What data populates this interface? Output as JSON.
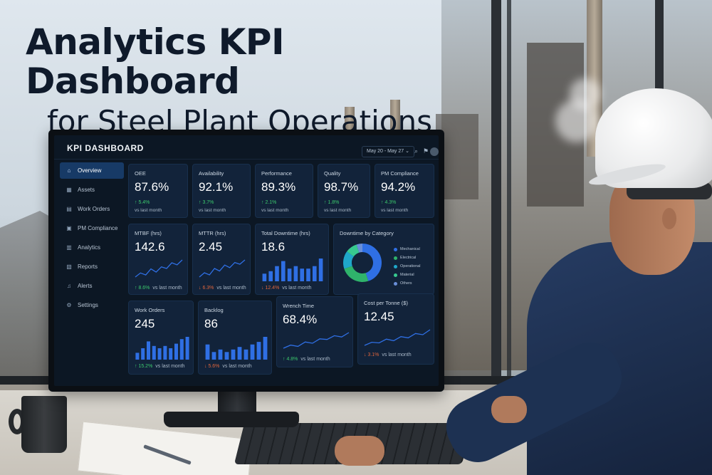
{
  "headline": {
    "title": "Analytics KPI Dashboard",
    "subtitle": "for Steel Plant Operations"
  },
  "app": {
    "title": "KPI DASHBOARD",
    "date_range": "May 20 - May 27",
    "icons": [
      "search-icon",
      "notification-icon",
      "user-avatar"
    ]
  },
  "sidebar": {
    "items": [
      {
        "label": "Overview",
        "icon": "home-icon",
        "active": true
      },
      {
        "label": "Assets",
        "icon": "assets-icon",
        "active": false
      },
      {
        "label": "Work Orders",
        "icon": "clipboard-icon",
        "active": false
      },
      {
        "label": "PM Compliance",
        "icon": "calendar-icon",
        "active": false
      },
      {
        "label": "Analytics",
        "icon": "analytics-icon",
        "active": false
      },
      {
        "label": "Reports",
        "icon": "report-icon",
        "active": false
      },
      {
        "label": "Alerts",
        "icon": "bell-icon",
        "active": false
      },
      {
        "label": "Settings",
        "icon": "gear-icon",
        "active": false
      }
    ]
  },
  "kpis_row1": [
    {
      "label": "OEE",
      "value": "87.6%",
      "delta": "↑ 5.4%",
      "sub": "vs last month",
      "trend": "up"
    },
    {
      "label": "Availability",
      "value": "92.1%",
      "delta": "↑ 3.7%",
      "sub": "vs last month",
      "trend": "up"
    },
    {
      "label": "Performance",
      "value": "89.3%",
      "delta": "↑ 2.1%",
      "sub": "vs last month",
      "trend": "up"
    },
    {
      "label": "Quality",
      "value": "98.7%",
      "delta": "↑ 1.8%",
      "sub": "vs last month",
      "trend": "up"
    },
    {
      "label": "PM Compliance",
      "value": "94.2%",
      "delta": "↑ 4.3%",
      "sub": "vs last month",
      "trend": "up"
    }
  ],
  "kpis_row2": [
    {
      "label": "MTBF (hrs)",
      "value": "142.6",
      "delta": "↑ 8.6%",
      "sub": "vs last month",
      "trend": "up"
    },
    {
      "label": "MTTR (hrs)",
      "value": "2.45",
      "delta": "↓ 6.3%",
      "sub": "vs last month",
      "trend": "down"
    },
    {
      "label": "Total Downtime (hrs)",
      "value": "18.6",
      "delta": "↓ 12.4%",
      "sub": "vs last month",
      "trend": "down"
    }
  ],
  "kpis_row3": [
    {
      "label": "Work Orders",
      "value": "245",
      "delta": "↑ 15.2%",
      "sub": "vs last month",
      "trend": "up"
    },
    {
      "label": "Backlog",
      "value": "86",
      "delta": "↓ 5.6%",
      "sub": "vs last month",
      "trend": "down"
    },
    {
      "label": "Wrench Time",
      "value": "68.4%",
      "delta": "↑ 4.8%",
      "sub": "vs last month",
      "trend": "up"
    },
    {
      "label": "Cost per Tonne ($)",
      "value": "12.45",
      "delta": "↓ 3.1%",
      "sub": "vs last month",
      "trend": "down"
    }
  ],
  "colors": {
    "up": "#3cc96d",
    "down": "#e0653c",
    "accent": "#2f6fe4",
    "card": "#12233a"
  },
  "chart_data": [
    {
      "type": "pie",
      "title": "Downtime by Category",
      "categories": [
        "Mechanical",
        "Electrical",
        "Operational",
        "Material",
        "Others"
      ],
      "values": [
        45,
        25,
        15,
        10,
        5
      ],
      "labels": [
        "45%",
        "25%",
        "15%",
        "10%",
        "5%"
      ],
      "colors": [
        "#2f6fe4",
        "#2fb36b",
        "#1fa7c9",
        "#37c98f",
        "#6a8fd9"
      ]
    },
    {
      "type": "line",
      "title": "MTBF (hrs)",
      "values": [
        4,
        5,
        4.5,
        6,
        5.2,
        6.5,
        6.1,
        7.5,
        7,
        8.2
      ]
    },
    {
      "type": "line",
      "title": "MTTR (hrs)",
      "values": [
        5,
        6,
        5.5,
        7,
        6.4,
        7.8,
        7.2,
        8.4,
        8,
        9
      ]
    },
    {
      "type": "bar",
      "title": "Total Downtime (hrs)",
      "values": [
        3,
        4,
        6,
        8,
        5,
        6,
        5,
        5,
        6,
        9
      ]
    },
    {
      "type": "bar",
      "title": "Work Orders",
      "values": [
        3,
        5,
        8,
        6,
        5,
        6,
        5,
        7,
        9,
        10
      ]
    },
    {
      "type": "bar",
      "title": "Backlog",
      "values": [
        6,
        3,
        4,
        3,
        4,
        5,
        4,
        6,
        7,
        9
      ]
    },
    {
      "type": "line",
      "title": "Wrench Time",
      "values": [
        3,
        4,
        3.6,
        5,
        4.6,
        6,
        5.8,
        7,
        6.6,
        8
      ]
    },
    {
      "type": "line",
      "title": "Cost per Tonne ($)",
      "values": [
        3,
        4,
        3.8,
        5,
        4.5,
        5.8,
        5.4,
        6.8,
        6.4,
        8
      ]
    }
  ]
}
